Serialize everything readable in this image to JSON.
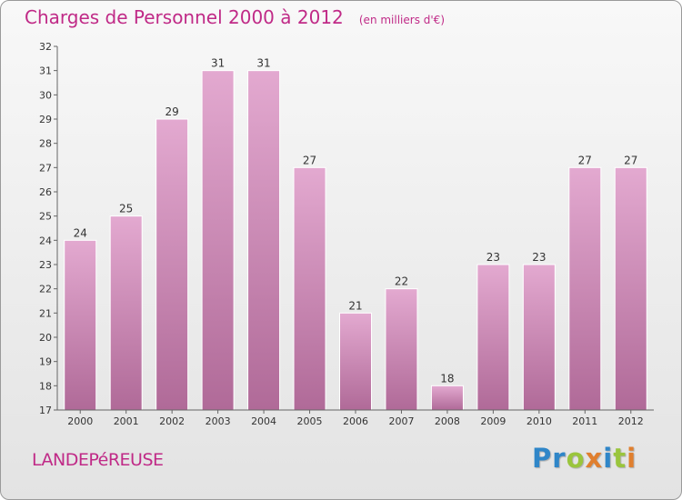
{
  "header": {
    "title": "Charges de Personnel 2000 à 2012",
    "subtitle": "(en milliers d'€)"
  },
  "footer": {
    "commune": "LANDEPéREUSE",
    "logo_letters": [
      "P",
      "r",
      "o",
      "x",
      "i",
      "t",
      "i"
    ]
  },
  "colors": {
    "bar_top": "#e3a9d0",
    "bar_bottom": "#b06a98",
    "title": "#c02a87"
  },
  "chart_data": {
    "type": "bar",
    "categories": [
      "2000",
      "2001",
      "2002",
      "2003",
      "2004",
      "2005",
      "2006",
      "2007",
      "2008",
      "2009",
      "2010",
      "2011",
      "2012"
    ],
    "values": [
      24,
      25,
      29,
      31,
      31,
      27,
      21,
      22,
      18,
      23,
      23,
      27,
      27
    ],
    "title": "Charges de Personnel 2000 à 2012",
    "ylim": [
      17,
      32
    ],
    "yticks": [
      17,
      18,
      19,
      20,
      21,
      22,
      23,
      24,
      25,
      26,
      27,
      28,
      29,
      30,
      31,
      32
    ],
    "grid": false
  }
}
